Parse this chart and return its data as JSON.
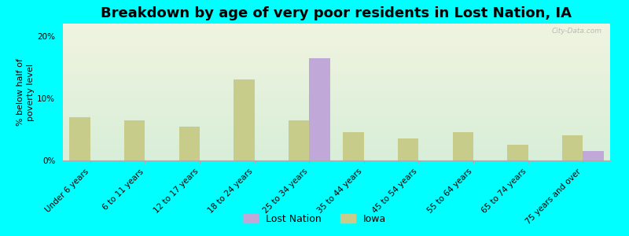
{
  "title": "Breakdown by age of very poor residents in Lost Nation, IA",
  "ylabel": "% below half of\npoverty level",
  "categories": [
    "Under 6 years",
    "6 to 11 years",
    "12 to 17 years",
    "18 to 24 years",
    "25 to 34 years",
    "35 to 44 years",
    "45 to 54 years",
    "55 to 64 years",
    "65 to 74 years",
    "75 years and over"
  ],
  "iowa_values": [
    7.0,
    6.5,
    5.5,
    13.0,
    6.5,
    4.5,
    3.5,
    4.5,
    2.5,
    4.0
  ],
  "lost_nation_values": [
    0,
    0,
    0,
    0,
    16.5,
    0,
    0,
    0,
    0,
    1.5
  ],
  "iowa_color": "#c8cc8a",
  "lost_nation_color": "#c0a8d8",
  "background_color": "#00ffff",
  "plot_bg_top": "#f0f4e0",
  "plot_bg_bottom": "#d8eed8",
  "ylim": [
    0,
    22
  ],
  "yticks": [
    0,
    10,
    20
  ],
  "title_fontsize": 13,
  "axis_label_fontsize": 8,
  "tick_fontsize": 7.5,
  "bar_width": 0.38,
  "watermark": "City-Data.com"
}
